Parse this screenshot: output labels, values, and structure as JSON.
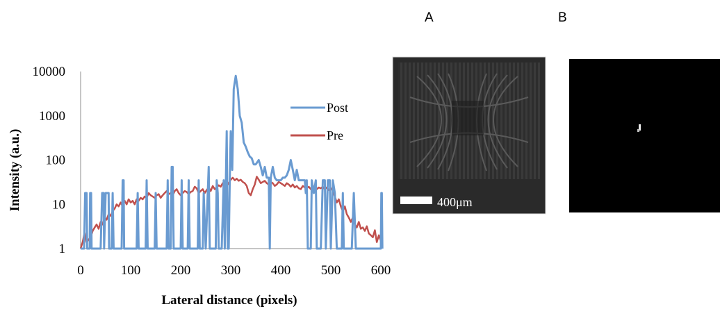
{
  "panels": {
    "a_label": "A",
    "b_label": "B"
  },
  "scale_bar": {
    "label": "400μm"
  },
  "chart_data": {
    "type": "line",
    "title": "",
    "xlabel": "Lateral distance (pixels)",
    "ylabel": "Intensity (a.u.)",
    "x_scale": "linear",
    "y_scale": "log",
    "xlim": [
      0,
      600
    ],
    "ylim": [
      1,
      10000
    ],
    "x_ticks": [
      0,
      100,
      200,
      300,
      400,
      500,
      600
    ],
    "x_tick_labels": [
      "0",
      "100",
      "200",
      "300",
      "400",
      "500",
      "600"
    ],
    "y_ticks": [
      1,
      10,
      100,
      1000,
      10000
    ],
    "y_tick_labels": [
      "1",
      "10",
      "100",
      "1000",
      "10000"
    ],
    "legend_position": "right",
    "grid": false,
    "series": [
      {
        "name": "Post",
        "color": "#6a9bd1",
        "points": [
          [
            0,
            1
          ],
          [
            7,
            1
          ],
          [
            9,
            18
          ],
          [
            12,
            18
          ],
          [
            13,
            1
          ],
          [
            18,
            1
          ],
          [
            19,
            18
          ],
          [
            21,
            18
          ],
          [
            22,
            1
          ],
          [
            40,
            1
          ],
          [
            43,
            18
          ],
          [
            46,
            18
          ],
          [
            47,
            1
          ],
          [
            50,
            18
          ],
          [
            56,
            18
          ],
          [
            57,
            1
          ],
          [
            62,
            1
          ],
          [
            64,
            18
          ],
          [
            66,
            1
          ],
          [
            82,
            1
          ],
          [
            84,
            35
          ],
          [
            86,
            35
          ],
          [
            87,
            1
          ],
          [
            112,
            1
          ],
          [
            114,
            18
          ],
          [
            116,
            1
          ],
          [
            130,
            1
          ],
          [
            132,
            35
          ],
          [
            134,
            1
          ],
          [
            148,
            1
          ],
          [
            150,
            18
          ],
          [
            152,
            1
          ],
          [
            172,
            1
          ],
          [
            174,
            35
          ],
          [
            176,
            1
          ],
          [
            180,
            1
          ],
          [
            182,
            70
          ],
          [
            184,
            70
          ],
          [
            186,
            1
          ],
          [
            200,
            1
          ],
          [
            202,
            35
          ],
          [
            204,
            1
          ],
          [
            214,
            1
          ],
          [
            216,
            35
          ],
          [
            218,
            1
          ],
          [
            234,
            1
          ],
          [
            236,
            35
          ],
          [
            238,
            1
          ],
          [
            244,
            1
          ],
          [
            246,
            18
          ],
          [
            250,
            1
          ],
          [
            256,
            70
          ],
          [
            258,
            1
          ],
          [
            270,
            1
          ],
          [
            272,
            35
          ],
          [
            274,
            18
          ],
          [
            276,
            1
          ],
          [
            282,
            1
          ],
          [
            286,
            35
          ],
          [
            288,
            1
          ],
          [
            292,
            450
          ],
          [
            294,
            1
          ],
          [
            296,
            1
          ],
          [
            298,
            35
          ],
          [
            300,
            450
          ],
          [
            303,
            60
          ],
          [
            306,
            4000
          ],
          [
            310,
            8000
          ],
          [
            314,
            4000
          ],
          [
            318,
            1000
          ],
          [
            322,
            700
          ],
          [
            326,
            250
          ],
          [
            330,
            200
          ],
          [
            334,
            150
          ],
          [
            338,
            120
          ],
          [
            342,
            110
          ],
          [
            346,
            80
          ],
          [
            350,
            80
          ],
          [
            356,
            100
          ],
          [
            360,
            70
          ],
          [
            364,
            45
          ],
          [
            368,
            70
          ],
          [
            372,
            40
          ],
          [
            376,
            40
          ],
          [
            378,
            1
          ],
          [
            380,
            40
          ],
          [
            384,
            70
          ],
          [
            388,
            40
          ],
          [
            392,
            35
          ],
          [
            396,
            35
          ],
          [
            400,
            35
          ],
          [
            404,
            40
          ],
          [
            408,
            40
          ],
          [
            412,
            45
          ],
          [
            416,
            60
          ],
          [
            420,
            100
          ],
          [
            424,
            60
          ],
          [
            428,
            35
          ],
          [
            432,
            60
          ],
          [
            436,
            35
          ],
          [
            440,
            35
          ],
          [
            444,
            35
          ],
          [
            448,
            35
          ],
          [
            450,
            18
          ],
          [
            452,
            35
          ],
          [
            454,
            1
          ],
          [
            460,
            1
          ],
          [
            462,
            35
          ],
          [
            466,
            18
          ],
          [
            470,
            35
          ],
          [
            472,
            1
          ],
          [
            480,
            1
          ],
          [
            484,
            35
          ],
          [
            488,
            35
          ],
          [
            490,
            1
          ],
          [
            494,
            35
          ],
          [
            498,
            35
          ],
          [
            500,
            1
          ],
          [
            504,
            35
          ],
          [
            508,
            18
          ],
          [
            512,
            1
          ],
          [
            522,
            1
          ],
          [
            524,
            18
          ],
          [
            526,
            1
          ],
          [
            542,
            1
          ],
          [
            546,
            18
          ],
          [
            550,
            1
          ],
          [
            600,
            1
          ],
          [
            601,
            18
          ],
          [
            602,
            18
          ],
          [
            603,
            1
          ]
        ]
      },
      {
        "name": "Pre",
        "color": "#c0504d",
        "points": [
          [
            0,
            1
          ],
          [
            4,
            1.4
          ],
          [
            8,
            2.3
          ],
          [
            12,
            1.4
          ],
          [
            16,
            1.6
          ],
          [
            20,
            1.8
          ],
          [
            24,
            2.5
          ],
          [
            28,
            3
          ],
          [
            32,
            3.5
          ],
          [
            36,
            2.8
          ],
          [
            40,
            4
          ],
          [
            44,
            3.5
          ],
          [
            48,
            5
          ],
          [
            52,
            4.5
          ],
          [
            56,
            6
          ],
          [
            60,
            5.5
          ],
          [
            64,
            7
          ],
          [
            68,
            8
          ],
          [
            72,
            10
          ],
          [
            76,
            9
          ],
          [
            80,
            11
          ],
          [
            84,
            9
          ],
          [
            88,
            12
          ],
          [
            92,
            10
          ],
          [
            96,
            13
          ],
          [
            100,
            11
          ],
          [
            104,
            12
          ],
          [
            108,
            10
          ],
          [
            112,
            13
          ],
          [
            116,
            12
          ],
          [
            120,
            14
          ],
          [
            124,
            13
          ],
          [
            128,
            15
          ],
          [
            132,
            14
          ],
          [
            136,
            18
          ],
          [
            140,
            16
          ],
          [
            144,
            15
          ],
          [
            148,
            14
          ],
          [
            152,
            16
          ],
          [
            156,
            17
          ],
          [
            160,
            14
          ],
          [
            164,
            16
          ],
          [
            168,
            18
          ],
          [
            172,
            20
          ],
          [
            176,
            17
          ],
          [
            180,
            18
          ],
          [
            184,
            16
          ],
          [
            188,
            20
          ],
          [
            192,
            22
          ],
          [
            196,
            18
          ],
          [
            200,
            16
          ],
          [
            204,
            18
          ],
          [
            208,
            20
          ],
          [
            212,
            19
          ],
          [
            216,
            17
          ],
          [
            220,
            19
          ],
          [
            224,
            20
          ],
          [
            228,
            25
          ],
          [
            232,
            23
          ],
          [
            236,
            18
          ],
          [
            240,
            20
          ],
          [
            244,
            22
          ],
          [
            248,
            18
          ],
          [
            252,
            21
          ],
          [
            256,
            24
          ],
          [
            260,
            20
          ],
          [
            264,
            26
          ],
          [
            268,
            22
          ],
          [
            272,
            24
          ],
          [
            276,
            27
          ],
          [
            280,
            25
          ],
          [
            284,
            30
          ],
          [
            288,
            32
          ],
          [
            292,
            26
          ],
          [
            296,
            30
          ],
          [
            300,
            36
          ],
          [
            304,
            40
          ],
          [
            308,
            35
          ],
          [
            312,
            38
          ],
          [
            316,
            34
          ],
          [
            320,
            36
          ],
          [
            324,
            32
          ],
          [
            328,
            30
          ],
          [
            332,
            26
          ],
          [
            336,
            18
          ],
          [
            340,
            16
          ],
          [
            344,
            22
          ],
          [
            348,
            28
          ],
          [
            352,
            42
          ],
          [
            356,
            36
          ],
          [
            360,
            30
          ],
          [
            364,
            32
          ],
          [
            368,
            34
          ],
          [
            372,
            30
          ],
          [
            376,
            28
          ],
          [
            380,
            32
          ],
          [
            384,
            30
          ],
          [
            388,
            26
          ],
          [
            392,
            28
          ],
          [
            396,
            32
          ],
          [
            400,
            30
          ],
          [
            404,
            28
          ],
          [
            408,
            26
          ],
          [
            412,
            30
          ],
          [
            416,
            28
          ],
          [
            420,
            25
          ],
          [
            424,
            28
          ],
          [
            428,
            24
          ],
          [
            432,
            26
          ],
          [
            436,
            23
          ],
          [
            440,
            22
          ],
          [
            444,
            26
          ],
          [
            448,
            24
          ],
          [
            452,
            23
          ],
          [
            456,
            25
          ],
          [
            460,
            22
          ],
          [
            464,
            24
          ],
          [
            468,
            26
          ],
          [
            472,
            22
          ],
          [
            476,
            24
          ],
          [
            480,
            23
          ],
          [
            484,
            25
          ],
          [
            488,
            22
          ],
          [
            492,
            24
          ],
          [
            496,
            21
          ],
          [
            500,
            23
          ],
          [
            504,
            20
          ],
          [
            508,
            15
          ],
          [
            512,
            11
          ],
          [
            516,
            13
          ],
          [
            520,
            9
          ],
          [
            524,
            7
          ],
          [
            528,
            9
          ],
          [
            532,
            6
          ],
          [
            536,
            5
          ],
          [
            540,
            4
          ],
          [
            544,
            5
          ],
          [
            548,
            3.5
          ],
          [
            552,
            3
          ],
          [
            556,
            4
          ],
          [
            560,
            2.8
          ],
          [
            564,
            3
          ],
          [
            568,
            2.5
          ],
          [
            572,
            3.2
          ],
          [
            576,
            2.2
          ],
          [
            580,
            2
          ],
          [
            584,
            1.8
          ],
          [
            588,
            2.6
          ],
          [
            592,
            1.4
          ],
          [
            596,
            2
          ],
          [
            600,
            1.5
          ],
          [
            602,
            1
          ]
        ]
      }
    ]
  }
}
